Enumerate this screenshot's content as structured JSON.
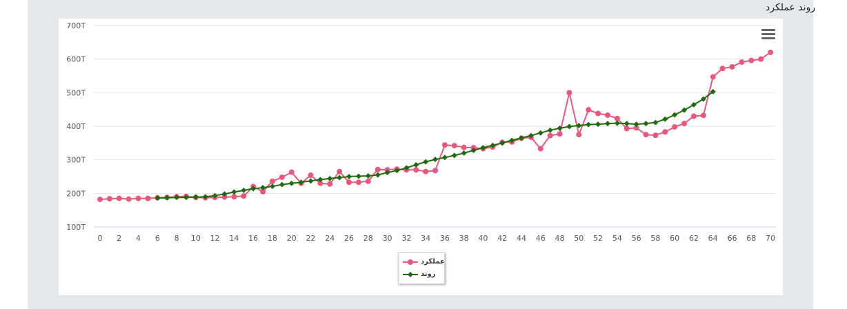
{
  "page": {
    "title": "روند عملکرد"
  },
  "chart_data": {
    "type": "line",
    "title": "روند عملکرد",
    "xlabel": "",
    "ylabel": "",
    "x_ticks": [
      0,
      2,
      4,
      6,
      8,
      10,
      12,
      14,
      16,
      18,
      20,
      22,
      24,
      26,
      28,
      30,
      32,
      34,
      36,
      38,
      40,
      42,
      44,
      46,
      48,
      50,
      52,
      54,
      56,
      58,
      60,
      62,
      64,
      66,
      68,
      70
    ],
    "y_ticks": [
      "100T",
      "200T",
      "300T",
      "400T",
      "500T",
      "600T",
      "700T"
    ],
    "xlim": [
      0,
      70
    ],
    "ylim": [
      100,
      700
    ],
    "grid": "horizontal",
    "legend_position": "bottom-center",
    "series": [
      {
        "name": "عملکرد",
        "color": "#e8577e",
        "marker": "circle",
        "x": [
          0,
          1,
          2,
          3,
          4,
          5,
          6,
          7,
          8,
          9,
          10,
          11,
          12,
          13,
          14,
          15,
          16,
          17,
          18,
          19,
          20,
          21,
          22,
          23,
          24,
          25,
          26,
          27,
          28,
          29,
          30,
          31,
          32,
          33,
          34,
          35,
          36,
          37,
          38,
          39,
          40,
          41,
          42,
          43,
          44,
          45,
          46,
          47,
          48,
          49,
          50,
          51,
          52,
          53,
          54,
          55,
          56,
          57,
          58,
          59,
          60,
          61,
          62,
          63,
          64,
          65,
          66,
          67,
          68,
          69,
          70
        ],
        "y": [
          182,
          184,
          185,
          183,
          185,
          185,
          187,
          188,
          190,
          191,
          188,
          187,
          188,
          189,
          190,
          192,
          220,
          205,
          236,
          248,
          263,
          230,
          254,
          230,
          228,
          265,
          233,
          233,
          236,
          271,
          270,
          272,
          270,
          270,
          265,
          268,
          344,
          342,
          337,
          336,
          333,
          338,
          352,
          353,
          364,
          367,
          333,
          372,
          377,
          500,
          375,
          449,
          438,
          433,
          423,
          393,
          395,
          375,
          373,
          383,
          398,
          408,
          430,
          432,
          547,
          572,
          577,
          591,
          596,
          600,
          620
        ]
      },
      {
        "name": "روند",
        "color": "#1e6b0e",
        "marker": "diamond",
        "x": [
          6,
          7,
          8,
          9,
          10,
          11,
          12,
          13,
          14,
          15,
          16,
          17,
          18,
          19,
          20,
          21,
          22,
          23,
          24,
          25,
          26,
          27,
          28,
          29,
          30,
          31,
          32,
          33,
          34,
          35,
          36,
          37,
          38,
          39,
          40,
          41,
          42,
          43,
          44,
          45,
          46,
          47,
          48,
          49,
          50,
          51,
          52,
          53,
          54,
          55,
          56,
          57,
          58,
          59,
          60,
          61,
          62,
          63,
          64
        ],
        "y": [
          186,
          187,
          188,
          188,
          189,
          190,
          193,
          198,
          204,
          209,
          214,
          217,
          221,
          226,
          230,
          233,
          237,
          241,
          244,
          247,
          250,
          251,
          252,
          255,
          262,
          268,
          276,
          285,
          294,
          301,
          307,
          313,
          320,
          328,
          336,
          343,
          350,
          358,
          365,
          372,
          380,
          388,
          394,
          399,
          402,
          405,
          406,
          408,
          409,
          408,
          406,
          408,
          411,
          421,
          434,
          448,
          464,
          481,
          503
        ]
      }
    ]
  }
}
